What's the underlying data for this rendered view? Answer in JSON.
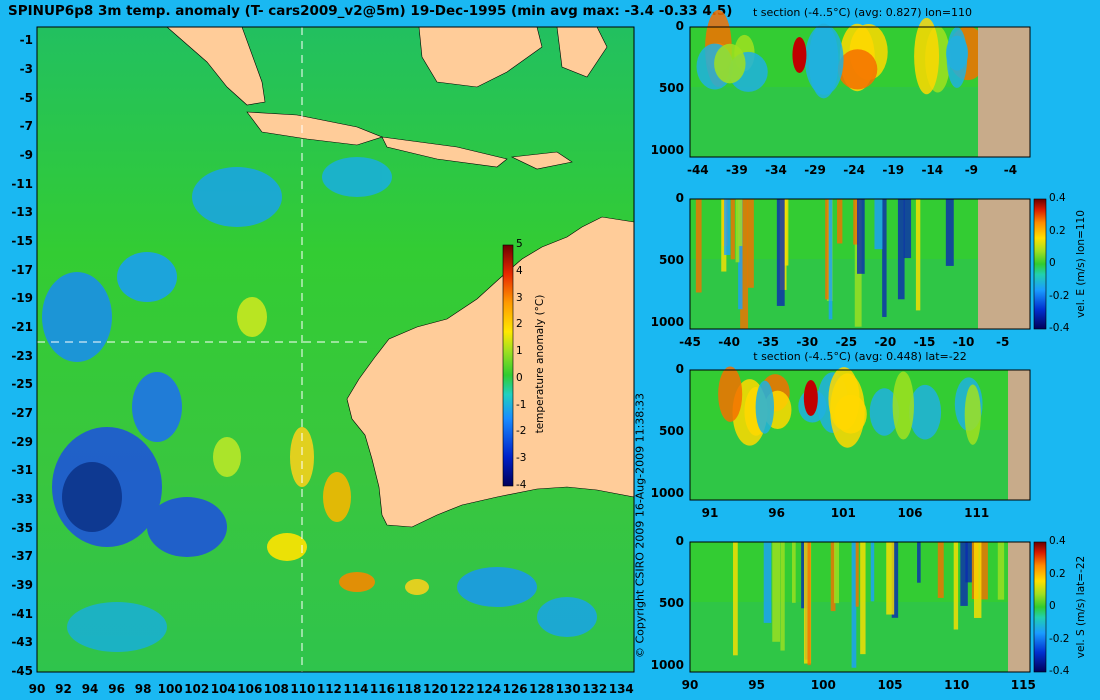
{
  "title": "SPINUP6p8 3m temp. anomaly (T- cars2009_v2@5m) 19-Dec-1995 (min avg max: -3.4 -0.33 4.5)",
  "copyright": "© Copyright CSIRO 2009   16-Aug-2009 11:38:33",
  "colors": {
    "background": "#1ab8f2",
    "land": "#ffcc99",
    "section_land": "#c8ab8a",
    "guide": "#ffffff"
  },
  "chart_data": [
    {
      "type": "heatmap",
      "name": "map",
      "xlim": [
        90,
        135
      ],
      "ylim": [
        -45,
        0
      ],
      "x_ticks": [
        "90",
        "92",
        "94",
        "96",
        "98",
        "100",
        "102",
        "104",
        "106",
        "108",
        "110",
        "112",
        "114",
        "116",
        "118",
        "120",
        "122",
        "124",
        "126",
        "128",
        "130",
        "132",
        "134"
      ],
      "y_ticks": [
        "-1",
        "-3",
        "-5",
        "-7",
        "-9",
        "-11",
        "-13",
        "-15",
        "-17",
        "-19",
        "-21",
        "-23",
        "-25",
        "-27",
        "-29",
        "-31",
        "-33",
        "-35",
        "-37",
        "-39",
        "-41",
        "-43",
        "-45"
      ],
      "section_lon": 110,
      "section_lat": -22,
      "colorbar": {
        "label": "temperature anomaly (°C)",
        "range": [
          -4,
          5
        ],
        "ticks": [
          "5",
          "4",
          "3",
          "2",
          "1",
          "0",
          "-1",
          "-2",
          "-3",
          "-4"
        ]
      }
    },
    {
      "type": "heatmap",
      "name": "t-section-lon110",
      "title": "t section (-4..5°C) (avg: 0.827) lon=110",
      "x_ticks": [
        "-44",
        "-39",
        "-34",
        "-29",
        "-24",
        "-19",
        "-14",
        "-9",
        "-4"
      ],
      "y_ticks": [
        "0",
        "500",
        "1000"
      ],
      "xlim": [
        -45,
        -1.5
      ],
      "ylim": [
        1050,
        0
      ]
    },
    {
      "type": "heatmap",
      "name": "vel-e-section-lon110",
      "x_ticks": [
        "-45",
        "-40",
        "-35",
        "-30",
        "-25",
        "-20",
        "-15",
        "-10",
        "-5"
      ],
      "y_ticks": [
        "0",
        "500",
        "1000"
      ],
      "xlim": [
        -45,
        -1.5
      ],
      "ylim": [
        1050,
        0
      ],
      "colorbar": {
        "label": "vel. E (m/s) lon=110",
        "range": [
          -0.4,
          0.4
        ],
        "ticks": [
          "0.4",
          "0.2",
          "0",
          "-0.2",
          "-0.4"
        ]
      }
    },
    {
      "type": "heatmap",
      "name": "t-section-lat-22",
      "title": "t section (-4..5°C) (avg: 0.448) lat=-22",
      "x_ticks": [
        "91",
        "96",
        "101",
        "106",
        "111"
      ],
      "y_ticks": [
        "0",
        "500",
        "1000"
      ],
      "xlim": [
        89.5,
        115
      ],
      "ylim": [
        1050,
        0
      ]
    },
    {
      "type": "heatmap",
      "name": "vel-s-section-lat-22",
      "x_ticks": [
        "90",
        "95",
        "100",
        "105",
        "110",
        "115"
      ],
      "y_ticks": [
        "0",
        "500",
        "1000"
      ],
      "xlim": [
        90,
        115.5
      ],
      "ylim": [
        1050,
        0
      ],
      "colorbar": {
        "label": "vel. S (m/s) lat=-22",
        "range": [
          -0.4,
          0.4
        ],
        "ticks": [
          "0.4",
          "0.2",
          "0",
          "-0.2",
          "-0.4"
        ]
      }
    }
  ]
}
